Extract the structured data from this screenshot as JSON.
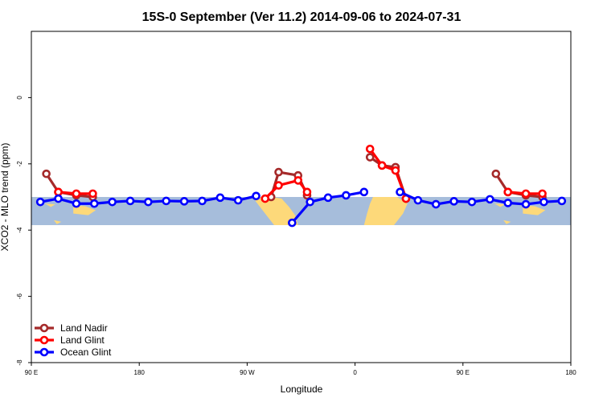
{
  "chart_data": {
    "type": "line",
    "title": "15S-0 September (Ver 11.2)   2014-09-06 to 2024-07-31",
    "xlabel": "Longitude",
    "ylabel": "XCO2 - MLO trend (ppm)",
    "xlim": [
      90,
      450
    ],
    "ylim": [
      -8,
      2
    ],
    "x_ticks": [
      {
        "value": 90,
        "label": "90 E"
      },
      {
        "value": 162,
        "label": "180"
      },
      {
        "value": 234,
        "label": "90 W"
      },
      {
        "value": 306,
        "label": "0"
      },
      {
        "value": 378,
        "label": "90 E"
      },
      {
        "value": 450,
        "label": "180"
      }
    ],
    "y_ticks": [
      {
        "value": 0,
        "label": "0"
      },
      {
        "value": -2,
        "label": "-2"
      },
      {
        "value": -4,
        "label": "-4"
      },
      {
        "value": -6,
        "label": "-6"
      },
      {
        "value": -8,
        "label": "-8"
      }
    ],
    "legend_position": "bottom-left",
    "map_band": {
      "y_top": -3.0,
      "y_bottom": -3.85,
      "ocean_color": "#a6bddb",
      "land_color": "#fdd97a"
    },
    "series": [
      {
        "name": "Land Nadir",
        "color": "#a52a2a",
        "segments": [
          [
            [
              100,
              -2.3
            ],
            [
              108,
              -2.85
            ],
            [
              120,
              -2.95
            ],
            [
              131,
              -3.0
            ]
          ],
          [
            [
              250,
              -3.0
            ],
            [
              255,
              -2.25
            ],
            [
              268,
              -2.35
            ],
            [
              274,
              -2.95
            ]
          ],
          [
            [
              316,
              -1.8
            ],
            [
              324,
              -2.05
            ],
            [
              333,
              -2.1
            ],
            [
              340,
              -3.05
            ]
          ],
          [
            [
              400,
              -2.3
            ],
            [
              408,
              -2.85
            ],
            [
              420,
              -2.95
            ],
            [
              431,
              -3.0
            ]
          ]
        ]
      },
      {
        "name": "Land Glint",
        "color": "#ff0000",
        "segments": [
          [
            [
              108,
              -2.85
            ],
            [
              120,
              -2.9
            ],
            [
              131,
              -2.9
            ]
          ],
          [
            [
              246,
              -3.05
            ],
            [
              255,
              -2.65
            ],
            [
              268,
              -2.5
            ],
            [
              274,
              -2.85
            ]
          ],
          [
            [
              316,
              -1.55
            ],
            [
              324,
              -2.05
            ],
            [
              333,
              -2.2
            ],
            [
              340,
              -3.05
            ]
          ],
          [
            [
              408,
              -2.85
            ],
            [
              420,
              -2.9
            ],
            [
              431,
              -2.9
            ]
          ]
        ]
      },
      {
        "name": "Ocean Glint",
        "color": "#0000ff",
        "segments": [
          [
            [
              96,
              -3.15
            ],
            [
              108,
              -3.05
            ],
            [
              120,
              -3.2
            ],
            [
              132,
              -3.2
            ],
            [
              144,
              -3.15
            ],
            [
              156,
              -3.12
            ],
            [
              168,
              -3.15
            ],
            [
              180,
              -3.12
            ],
            [
              192,
              -3.13
            ],
            [
              204,
              -3.12
            ],
            [
              216,
              -3.02
            ],
            [
              228,
              -3.1
            ],
            [
              240,
              -2.97
            ]
          ],
          [
            [
              264,
              -3.78
            ],
            [
              276,
              -3.15
            ],
            [
              288,
              -3.02
            ],
            [
              300,
              -2.95
            ],
            [
              312,
              -2.85
            ]
          ],
          [
            [
              336,
              -2.85
            ],
            [
              348,
              -3.1
            ],
            [
              360,
              -3.22
            ],
            [
              372,
              -3.13
            ],
            [
              384,
              -3.15
            ],
            [
              396,
              -3.07
            ],
            [
              408,
              -3.18
            ],
            [
              420,
              -3.22
            ],
            [
              432,
              -3.15
            ],
            [
              444,
              -3.12
            ]
          ]
        ]
      }
    ]
  }
}
